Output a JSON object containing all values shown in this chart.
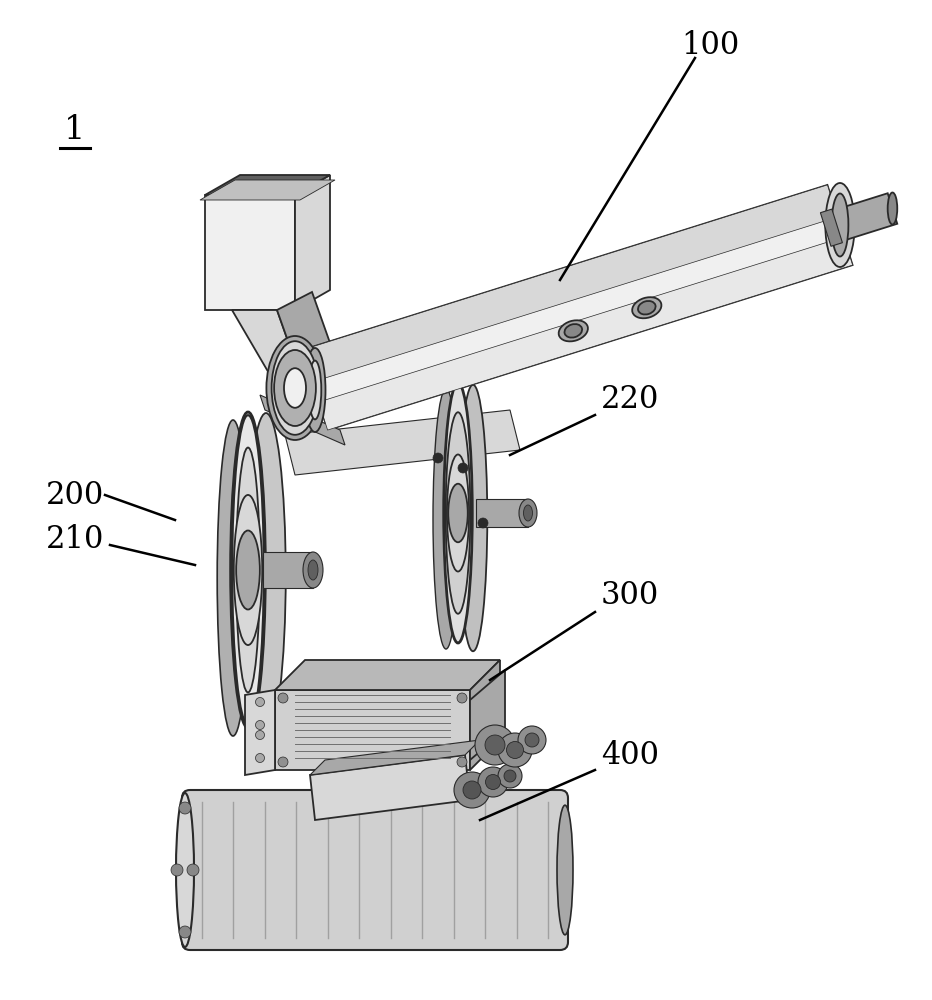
{
  "background_color": "#ffffff",
  "labels": {
    "main": "1",
    "part100": "100",
    "part200": "200",
    "part210": "210",
    "part220": "220",
    "part300": "300",
    "part400": "400"
  },
  "figsize": [
    9.32,
    10.0
  ],
  "dpi": 100,
  "edge_color": "#2a2a2a",
  "light_fill": "#f0f0f0",
  "mid_fill": "#d8d8d8",
  "dark_fill": "#a8a8a8",
  "darker_fill": "#888888"
}
